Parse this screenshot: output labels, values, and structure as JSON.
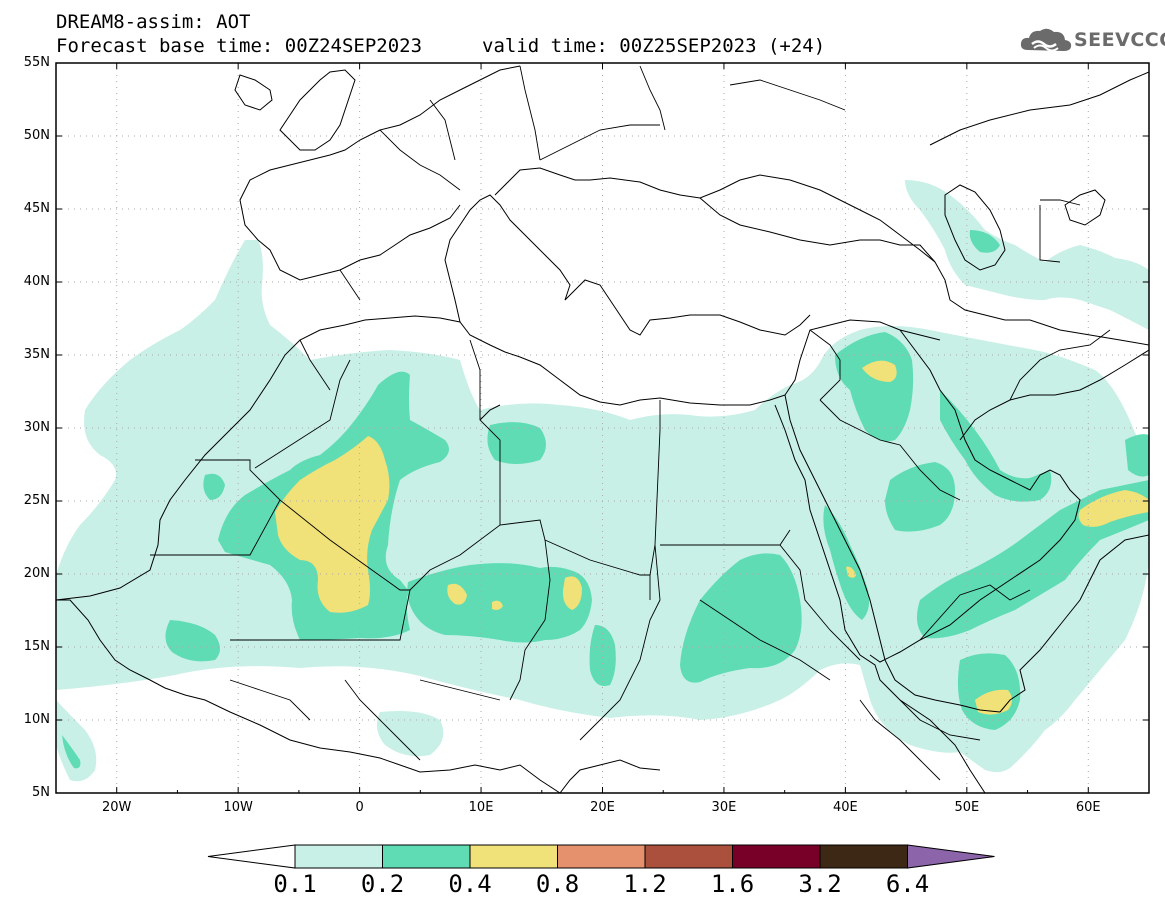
{
  "header": {
    "title": "DREAM8-assim: AOT",
    "base_time": "Forecast base time: 00Z24SEP2023",
    "valid_time": "valid time: 00Z25SEP2023 (+24)"
  },
  "logo": {
    "text": "SEEVCCC",
    "icon": "cloud-icon"
  },
  "map": {
    "lon_range": [
      -25,
      65
    ],
    "lat_range": [
      5,
      55
    ],
    "lat_labels": [
      "55N",
      "50N",
      "45N",
      "40N",
      "35N",
      "30N",
      "25N",
      "20N",
      "15N",
      "10N",
      "5N"
    ],
    "lon_labels": [
      "20W",
      "10W",
      "0",
      "10E",
      "20E",
      "30E",
      "40E",
      "50E",
      "60E"
    ],
    "gridlines": "dotted"
  },
  "colorbar": {
    "labels": [
      "0.1",
      "0.2",
      "0.4",
      "0.8",
      "1.2",
      "1.6",
      "3.2",
      "6.4"
    ],
    "colors": [
      "#ffffff",
      "#c8f0e6",
      "#5fdcb4",
      "#f0e178",
      "#e6916e",
      "#aa503c",
      "#780028",
      "#3c2814",
      "#8c64aa"
    ]
  },
  "fields": {
    "levels_colors": {
      "0.1": "#c8f0e6",
      "0.2": "#5fdcb4",
      "0.4": "#f0e178"
    }
  }
}
